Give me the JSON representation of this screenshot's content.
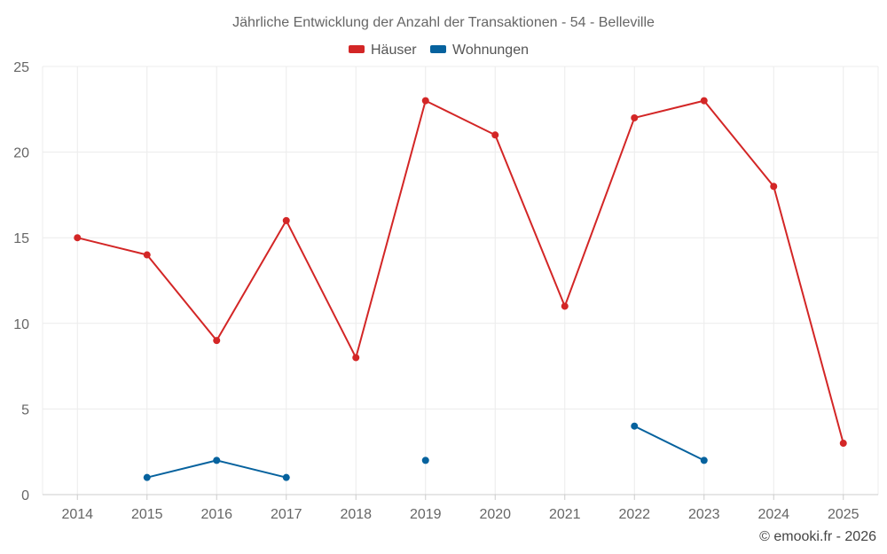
{
  "chart_data": {
    "type": "line",
    "title": "Jährliche Entwicklung der Anzahl der Transaktionen - 54 - Belleville",
    "xlabel": "",
    "ylabel": "",
    "categories": [
      "2014",
      "2015",
      "2016",
      "2017",
      "2018",
      "2019",
      "2020",
      "2021",
      "2022",
      "2023",
      "2024",
      "2025"
    ],
    "ylim": [
      0,
      25
    ],
    "yticks": [
      0,
      5,
      10,
      15,
      20,
      25
    ],
    "grid": true,
    "legend_position": "top-center",
    "series": [
      {
        "name": "Häuser",
        "color": "#d32626",
        "values": [
          15,
          14,
          9,
          16,
          8,
          23,
          21,
          11,
          22,
          23,
          18,
          3
        ]
      },
      {
        "name": "Wohnungen",
        "color": "#06629e",
        "values": [
          null,
          1,
          2,
          1,
          null,
          2,
          null,
          null,
          4,
          2,
          null,
          null
        ]
      }
    ]
  },
  "credit": "© emooki.fr - 2026"
}
